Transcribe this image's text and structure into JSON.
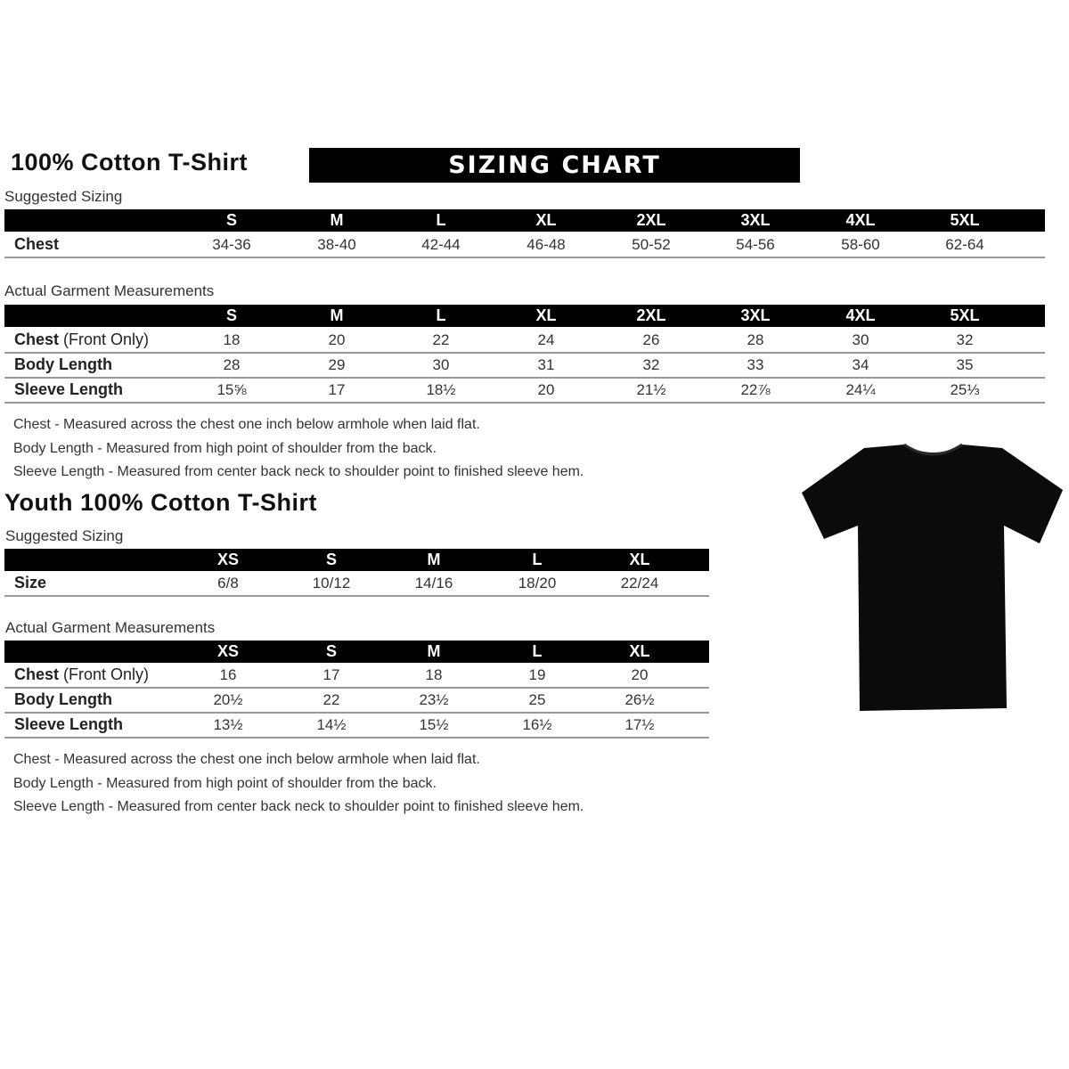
{
  "adult": {
    "title": "100% Cotton T-Shirt",
    "banner": "SIZING CHART",
    "suggested_label": "Suggested Sizing",
    "sizes": [
      "S",
      "M",
      "L",
      "XL",
      "2XL",
      "3XL",
      "4XL",
      "5XL"
    ],
    "suggested_rows": [
      {
        "label": "Chest",
        "label_note": "",
        "values": [
          "34-36",
          "38-40",
          "42-44",
          "46-48",
          "50-52",
          "54-56",
          "58-60",
          "62-64"
        ]
      }
    ],
    "actual_label": "Actual Garment Measurements",
    "actual_rows": [
      {
        "label": "Chest",
        "label_note": "(Front Only)",
        "values": [
          "18",
          "20",
          "22",
          "24",
          "26",
          "28",
          "30",
          "32"
        ]
      },
      {
        "label": "Body Length",
        "label_note": "",
        "values": [
          "28",
          "29",
          "30",
          "31",
          "32",
          "33",
          "34",
          "35"
        ]
      },
      {
        "label": "Sleeve Length",
        "label_note": "",
        "values": [
          "15⅝",
          "17",
          "18½",
          "20",
          "21½",
          "22⅞",
          "24¼",
          "25⅓"
        ]
      }
    ],
    "notes": [
      "Chest - Measured across the chest one inch below armhole when laid flat.",
      "Body Length - Measured from high point of shoulder from the back.",
      "Sleeve Length - Measured from center back neck to shoulder point to finished sleeve hem."
    ]
  },
  "youth": {
    "title": "Youth 100% Cotton T-Shirt",
    "suggested_label": "Suggested Sizing",
    "sizes": [
      "XS",
      "S",
      "M",
      "L",
      "XL"
    ],
    "suggested_rows": [
      {
        "label": "Size",
        "label_note": "",
        "values": [
          "6/8",
          "10/12",
          "14/16",
          "18/20",
          "22/24"
        ]
      }
    ],
    "actual_label": "Actual Garment Measurements",
    "actual_rows": [
      {
        "label": "Chest",
        "label_note": "(Front Only)",
        "values": [
          "16",
          "17",
          "18",
          "19",
          "20"
        ]
      },
      {
        "label": "Body Length",
        "label_note": "",
        "values": [
          "20½",
          "22",
          "23½",
          "25",
          "26½"
        ]
      },
      {
        "label": "Sleeve Length",
        "label_note": "",
        "values": [
          "13½",
          "14½",
          "15½",
          "16½",
          "17½"
        ]
      }
    ],
    "notes": [
      "Chest - Measured across the chest one inch below armhole when laid flat.",
      "Body Length - Measured from high point of shoulder from the back.",
      "Sleeve Length - Measured from center back neck to shoulder point to finished sleeve hem."
    ]
  },
  "image": {
    "icon": "t-shirt-icon",
    "color": "#000000"
  }
}
